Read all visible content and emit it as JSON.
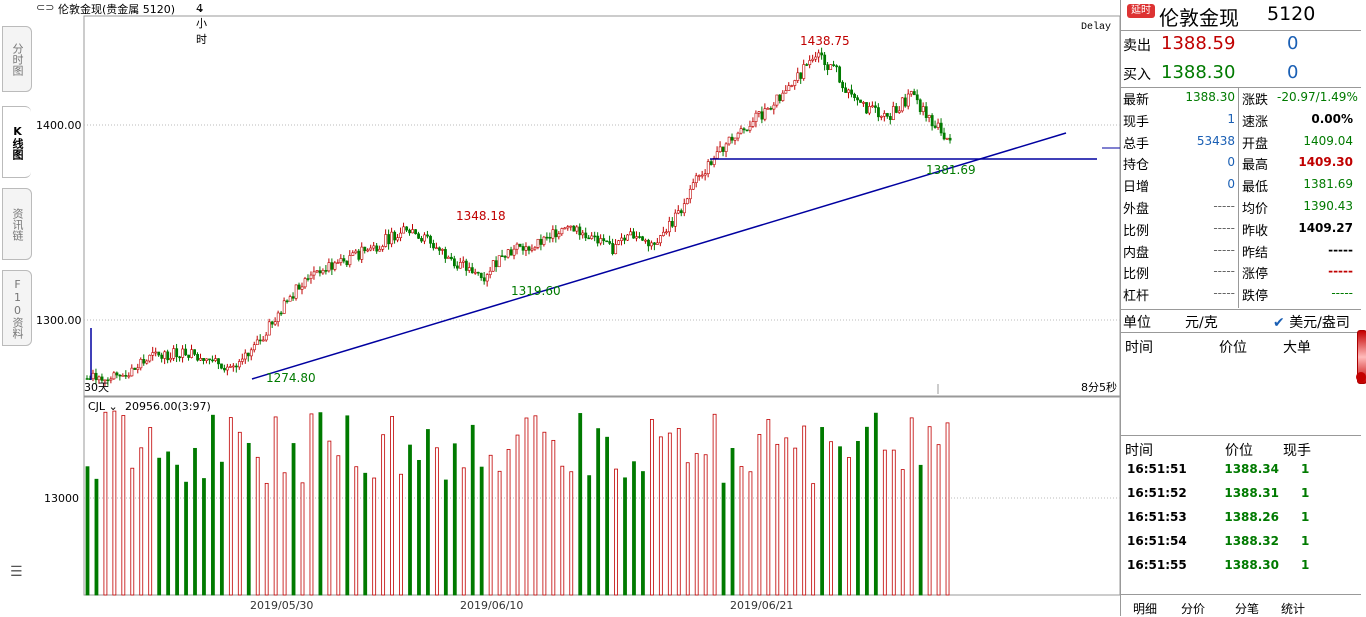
{
  "titlebar": {
    "symbol_label": "伦敦金现(贵金属 5120)",
    "period": "4小时"
  },
  "left_tabs": [
    "分时图",
    "K线图",
    "资讯链",
    "F10资料"
  ],
  "chart": {
    "delay_label": "Delay",
    "price_axis": [
      "1400.00",
      "1300.00"
    ],
    "volume_axis": "13000",
    "dates": [
      "2019/05/30",
      "2019/06/10",
      "2019/06/21"
    ],
    "annotations": {
      "high": "1438.75",
      "high2": "1348.18",
      "low1": "1319.60",
      "low0": "1274.80",
      "last_low": "1381.69"
    },
    "corner_label": "30天",
    "countdown": "8分5秒",
    "vol_indicator": "CJL",
    "vol_value": "20956.00(3:97)"
  },
  "panel": {
    "badge": "延时",
    "name": "伦敦金现",
    "code": "5120",
    "sell_label": "卖出",
    "sell_price": "1388.59",
    "sell_qty": "0",
    "buy_label": "买入",
    "buy_price": "1388.30",
    "buy_qty": "0",
    "stats": [
      {
        "l": "最新",
        "v": "1388.30",
        "c": "#007a00",
        "l2": "涨跌",
        "v2": "-20.97/1.49%",
        "c2": "#007a00"
      },
      {
        "l": "现手",
        "v": "1",
        "c": "#1a5fb4",
        "l2": "速涨",
        "v2": "0.00%",
        "c2": "#000"
      },
      {
        "l": "总手",
        "v": "53438",
        "c": "#1a5fb4",
        "l2": "开盘",
        "v2": "1409.04",
        "c2": "#007a00"
      },
      {
        "l": "持仓",
        "v": "0",
        "c": "#1a5fb4",
        "l2": "最高",
        "v2": "1409.30",
        "c2": "#c00000"
      },
      {
        "l": "日增",
        "v": "0",
        "c": "#1a5fb4",
        "l2": "最低",
        "v2": "1381.69",
        "c2": "#007a00"
      },
      {
        "l": "外盘",
        "v": "-----",
        "c": "#666",
        "l2": "均价",
        "v2": "1390.43",
        "c2": "#007a00"
      },
      {
        "l": "比例",
        "v": "-----",
        "c": "#666",
        "l2": "昨收",
        "v2": "1409.27",
        "c2": "#000"
      },
      {
        "l": "内盘",
        "v": "-----",
        "c": "#666",
        "l2": "昨结",
        "v2": "-----",
        "c2": "#000"
      },
      {
        "l": "比例",
        "v": "-----",
        "c": "#666",
        "l2": "涨停",
        "v2": "-----",
        "c2": "#c00000"
      },
      {
        "l": "杠杆",
        "v": "-----",
        "c": "#666",
        "l2": "跌停",
        "v2": "-----",
        "c2": "#007a00"
      }
    ],
    "unit_label": "单位",
    "unit_a": "元/克",
    "unit_b": "美元/盎司",
    "big_headers": [
      "时间",
      "价位",
      "大单"
    ],
    "tick_headers": [
      "时间",
      "价位",
      "现手"
    ],
    "ticks": [
      {
        "t": "16:51:51",
        "p": "1388.34",
        "q": "1"
      },
      {
        "t": "16:51:52",
        "p": "1388.31",
        "q": "1"
      },
      {
        "t": "16:51:53",
        "p": "1388.26",
        "q": "1"
      },
      {
        "t": "16:51:54",
        "p": "1388.32",
        "q": "1"
      },
      {
        "t": "16:51:55",
        "p": "1388.30",
        "q": "1"
      }
    ],
    "bottom_tabs": [
      "明细",
      "分价",
      "分笔",
      "统计"
    ]
  },
  "colors": {
    "up": "#c00000",
    "down": "#007a00",
    "trend": "#0000a0"
  }
}
